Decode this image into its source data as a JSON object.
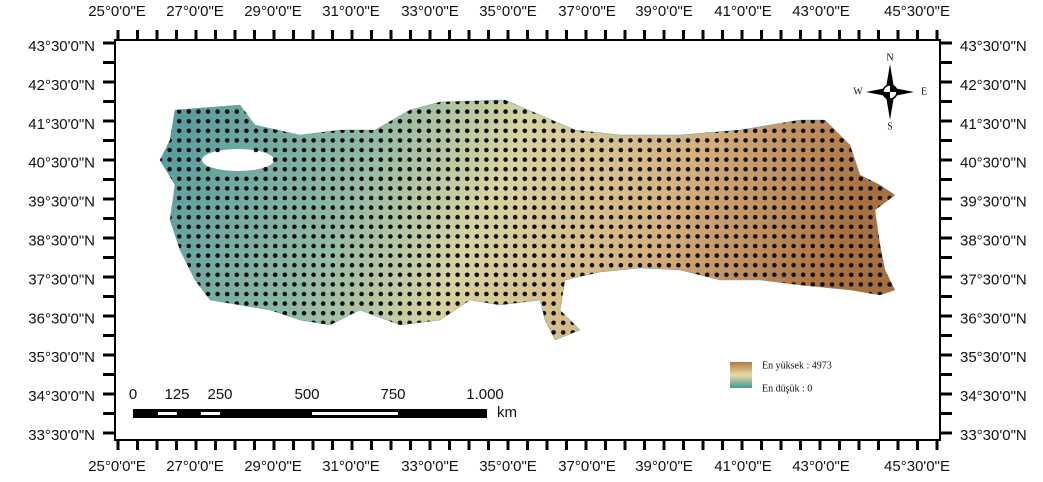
{
  "longitude_labels_top": [
    "25°0'0\"E",
    "27°0'0\"E",
    "29°0'0\"E",
    "31°0'0\"E",
    "33°0'0\"E",
    "35°0'0\"E",
    "37°0'0\"E",
    "39°0'0\"E",
    "41°0'0\"E",
    "43°0'0\"E",
    "45°30'0\"E"
  ],
  "longitude_labels_bottom": [
    "25°0'0\"E",
    "27°0'0\"E",
    "29°0'0\"E",
    "31°0'0\"E",
    "33°0'0\"E",
    "35°0'0\"E",
    "37°0'0\"E",
    "39°0'0\"E",
    "41°0'0\"E",
    "43°0'0\"E",
    "45°30'0\"E"
  ],
  "latitude_labels_left": [
    "43°30'0\"N",
    "42°30'0\"N",
    "41°30'0\"N",
    "40°30'0\"N",
    "39°30'0\"N",
    "38°30'0\"N",
    "37°30'0\"N",
    "36°30'0\"N",
    "35°30'0\"N",
    "34°30'0\"N",
    "33°30'0\"N"
  ],
  "latitude_labels_right": [
    "43°30'0\"N",
    "42°30'0\"N",
    "41°30'0\"N",
    "40°30'0\"N",
    "39°30'0\"N",
    "38°30'0\"N",
    "37°30'0\"N",
    "36°30'0\"N",
    "35°30'0\"N",
    "34°30'0\"N",
    "33°30'0\"N"
  ],
  "scale_bar": {
    "labels": [
      "0",
      "125",
      "250",
      "500",
      "750",
      "1.000"
    ],
    "unit": "km"
  },
  "legend": {
    "high": "En yüksek : 4973",
    "low": "En düşük : 0"
  },
  "compass": {
    "n": "N",
    "s": "S",
    "e": "E",
    "w": "W"
  }
}
